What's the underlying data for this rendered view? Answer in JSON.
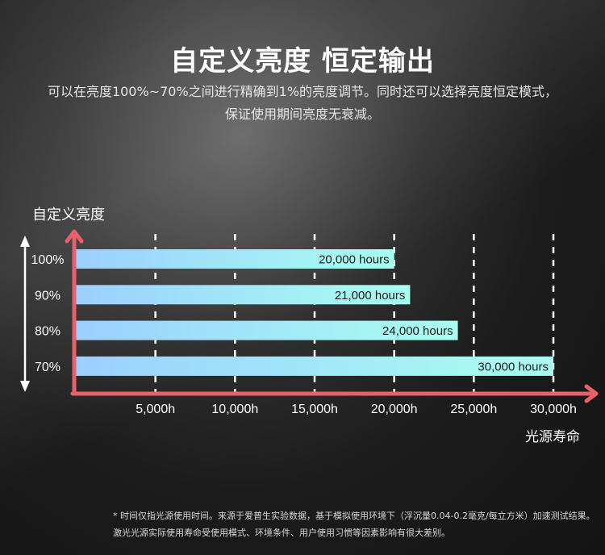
{
  "header": {
    "title": "自定义亮度 恒定输出",
    "subtitle": "可以在亮度100%~70%之间进行精确到1%的亮度调节。同时还可以选择亮度恒定模式，保证使用期间亮度无衰减。"
  },
  "footnote": "* 时间仅指光源使用时间。来源于爱普生实验数据，基于模拟使用环境下（浮沉量0.04-0.2毫克/每立方米）加速测试结果。激光光源实际使用寿命受使用模式、环境条件、用户使用习惯等因素影响有很大差别。",
  "chart_data": {
    "type": "bar",
    "orientation": "horizontal",
    "ylabel": "自定义亮度",
    "xlabel": "光源寿命",
    "categories": [
      "100%",
      "90%",
      "80%",
      "70%"
    ],
    "values": [
      20000,
      21000,
      24000,
      30000
    ],
    "data_labels": [
      "20,000 hours",
      "21,000 hours",
      "24,000 hours",
      "30,000 hours"
    ],
    "xticks": [
      5000,
      10000,
      15000,
      20000,
      25000,
      30000
    ],
    "xtick_labels": [
      "5,000h",
      "10,000h",
      "15,000h",
      "20,000h",
      "25,000h",
      "30,000h"
    ],
    "xlim": [
      0,
      30000
    ],
    "grid": "vertical dashed",
    "colors": {
      "bar_start": "#9ccfff",
      "bar_end": "#a8fff0",
      "axis": "#e8616a",
      "grid": "#ffffff"
    }
  }
}
